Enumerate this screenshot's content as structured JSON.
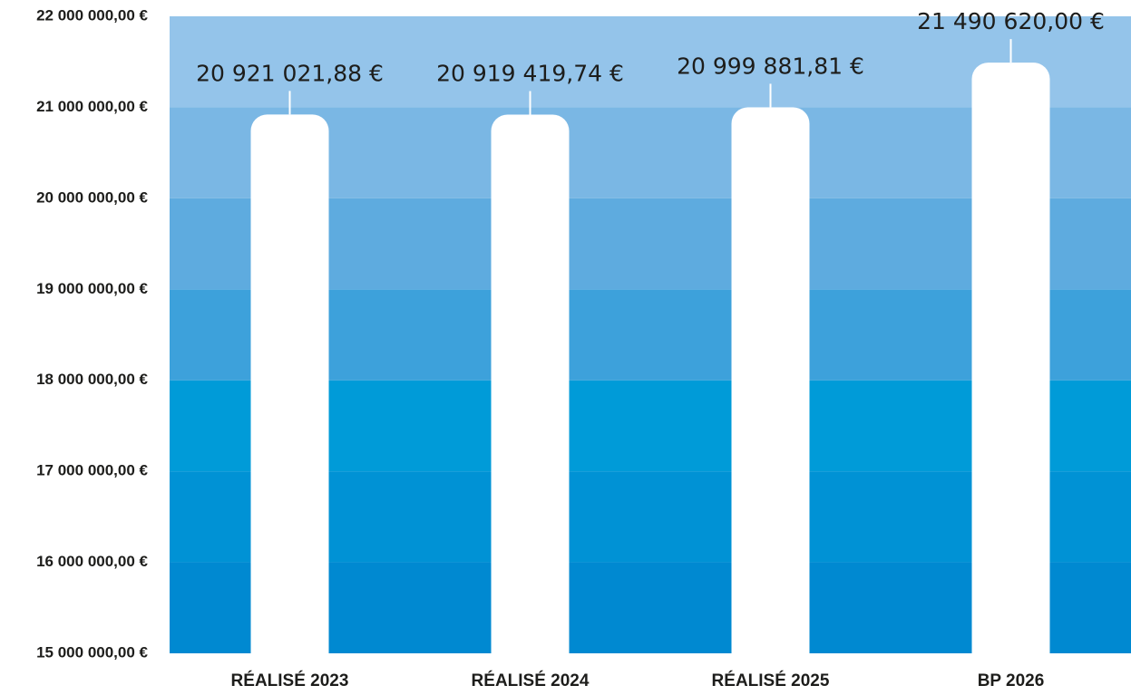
{
  "chart_data": {
    "type": "bar",
    "categories": [
      "RÉALISÉ 2023",
      "RÉALISÉ 2024",
      "RÉALISÉ 2025",
      "BP 2026"
    ],
    "values": [
      20921021.88,
      20919419.74,
      20999881.81,
      21490620
    ],
    "value_labels": [
      "20 921 021,88 €",
      "20 919 419,74 €",
      "20 999 881,81 €",
      "21 490 620,00 €"
    ],
    "color": "#ffffff",
    "ylim": [
      15000000,
      22000000
    ],
    "yticks": [
      {
        "value": 15000000,
        "label": "15 000 000,00 €"
      },
      {
        "value": 16000000,
        "label": "16 000 000,00 €"
      },
      {
        "value": 17000000,
        "label": "17 000 000,00 €"
      },
      {
        "value": 18000000,
        "label": "18 000 000,00 €"
      },
      {
        "value": 19000000,
        "label": "19 000 000,00 €"
      },
      {
        "value": 20000000,
        "label": "20 000 000,00 €"
      },
      {
        "value": 21000000,
        "label": "21 000 000,00 €"
      },
      {
        "value": 22000000,
        "label": "22 000 000,00 €"
      }
    ],
    "band_colors": [
      "#0089d1",
      "#0092d5",
      "#009bd8",
      "#3da1db",
      "#5eabdf",
      "#7ab7e4",
      "#94c4ea"
    ]
  }
}
